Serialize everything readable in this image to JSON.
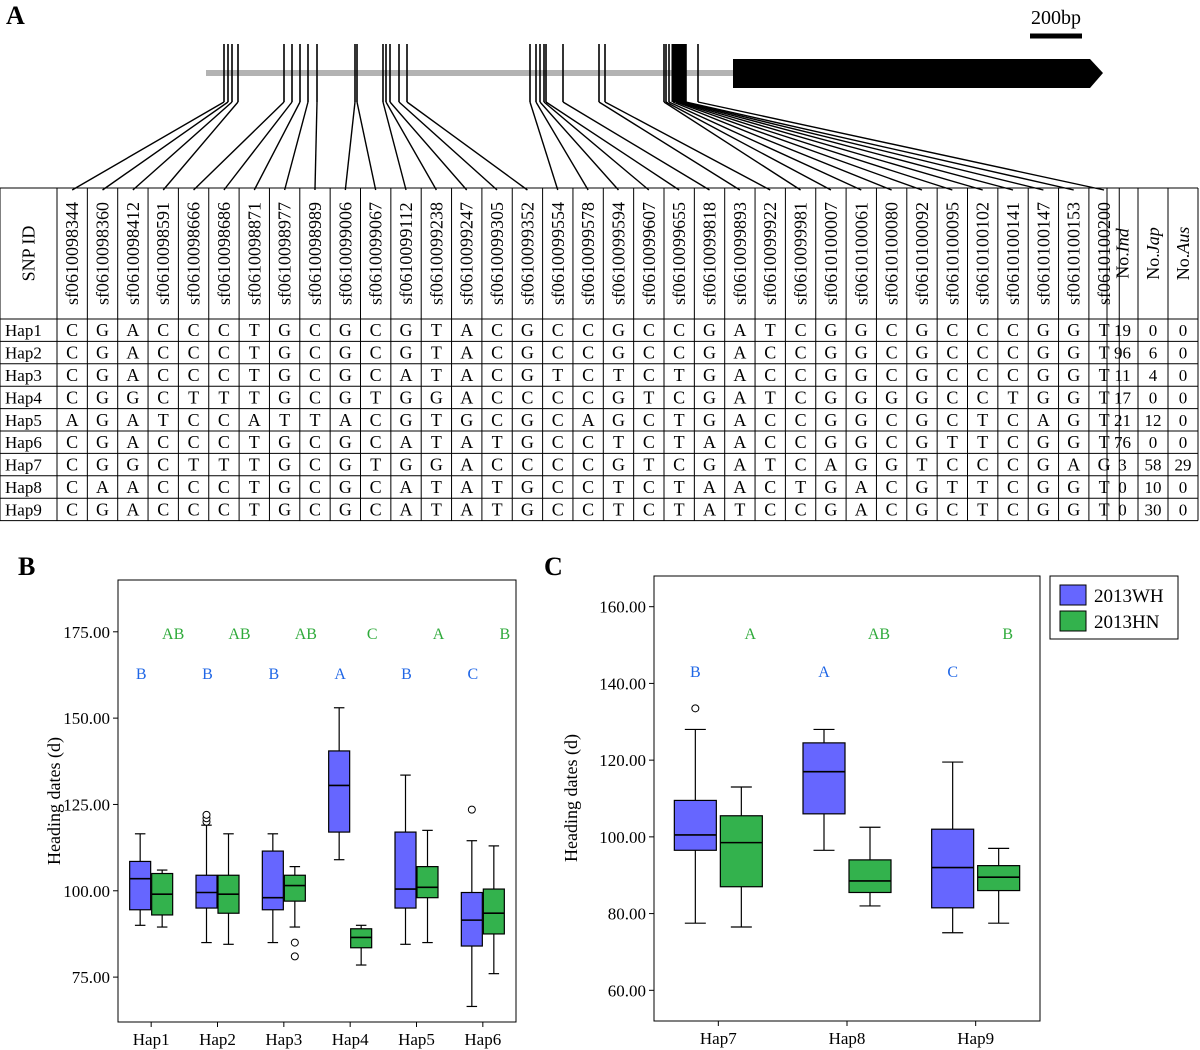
{
  "panel_labels": {
    "a": "A",
    "b": "B",
    "c": "C"
  },
  "gene_model": {
    "scale_bar_label": "200bp",
    "snp_count": 35
  },
  "snp_table": {
    "header_first": "SNP ID",
    "snp_ids": [
      "sf0610098344",
      "sf0610098360",
      "sf0610098412",
      "sf0610098591",
      "sf0610098666",
      "sf0610098686",
      "sf0610098871",
      "sf0610098977",
      "sf0610098989",
      "sf0610099006",
      "sf0610099067",
      "sf0610099112",
      "sf0610099238",
      "sf0610099247",
      "sf0610099305",
      "sf0610099352",
      "sf0610099554",
      "sf0610099578",
      "sf0610099594",
      "sf0610099607",
      "sf0610099655",
      "sf0610099818",
      "sf0610099893",
      "sf0610099922",
      "sf0610099981",
      "sf0610100007",
      "sf0610100061",
      "sf0610100080",
      "sf0610100092",
      "sf0610100095",
      "sf0610100102",
      "sf0610100141",
      "sf0610100147",
      "sf0610100153",
      "sf0610100200"
    ],
    "count_headers": [
      {
        "prefix": "No.",
        "italic": "Ind"
      },
      {
        "prefix": "No.",
        "italic": "Jap"
      },
      {
        "prefix": "No.",
        "italic": "Aus"
      }
    ],
    "rows": [
      {
        "hap": "Hap1",
        "alleles": "CGACCCTGCGCGTACGCCGCCGATCGGCGCCCGGT",
        "counts": [
          19,
          0,
          0
        ]
      },
      {
        "hap": "Hap2",
        "alleles": "CGACCCTGCGCGTACGCCGCCGACCGGCGCCCGGT",
        "counts": [
          96,
          6,
          0
        ]
      },
      {
        "hap": "Hap3",
        "alleles": "CGACCCTGCGCATACGTCTCTGACCGGCGCCCGGT",
        "counts": [
          11,
          4,
          0
        ]
      },
      {
        "hap": "Hap4",
        "alleles": "CGGCTTTGCGTGGACCCCGTCGATCGGGGCCTGGT",
        "counts": [
          17,
          0,
          0
        ]
      },
      {
        "hap": "Hap5",
        "alleles": "AGATCCATTACGTGCGCAGCTGACCGGCGCTCAGT",
        "counts": [
          21,
          12,
          0
        ]
      },
      {
        "hap": "Hap6",
        "alleles": "CGACCCTGCGCATATGCCTCTAACCGGCGTTCGGT",
        "counts": [
          76,
          0,
          0
        ]
      },
      {
        "hap": "Hap7",
        "alleles": "CGGCTTTGCGTGGACCCCGTCGATCAGGTCCCGAG",
        "counts": [
          3,
          58,
          29
        ]
      },
      {
        "hap": "Hap8",
        "alleles": "CAACCCTGCGCATATGCCTCTAACTGACGTTCGGT",
        "counts": [
          0,
          10,
          0
        ]
      },
      {
        "hap": "Hap9",
        "alleles": "CGACCCTGCGCATATGCCTCTATCCGACGCTCGGT",
        "counts": [
          0,
          30,
          0
        ]
      }
    ]
  },
  "colors": {
    "wh": "#6666ff",
    "hn": "#33b24d",
    "wh_letter": "#1f66e6",
    "hn_letter": "#2eaa3a"
  },
  "legend": {
    "wh": "2013WH",
    "hn": "2013HN"
  },
  "chart_data": [
    {
      "type": "boxplot",
      "panel": "B",
      "ylabel": "Heading dates (d)",
      "xlabel": "",
      "ylim": [
        62,
        190
      ],
      "yticks": [
        75,
        100,
        125,
        150,
        175
      ],
      "ytick_labels": [
        "75.00",
        "100.00",
        "125.00",
        "150.00",
        "175.00"
      ],
      "categories": [
        "Hap1",
        "Hap2",
        "Hap3",
        "Hap4",
        "Hap5",
        "Hap6"
      ],
      "series": [
        {
          "name": "2013WH",
          "boxes": [
            {
              "min": 90,
              "q1": 94.5,
              "median": 103.5,
              "q3": 108.5,
              "max": 116.5,
              "outliers": []
            },
            {
              "min": 85,
              "q1": 95,
              "median": 99.5,
              "q3": 104.5,
              "max": 119,
              "outliers": [
                120,
                121,
                122
              ]
            },
            {
              "min": 85,
              "q1": 94.5,
              "median": 98,
              "q3": 111.5,
              "max": 116.5,
              "outliers": []
            },
            {
              "min": 109,
              "q1": 117,
              "median": 130.5,
              "q3": 140.5,
              "max": 153,
              "outliers": []
            },
            {
              "min": 84.5,
              "q1": 95,
              "median": 100.5,
              "q3": 117,
              "max": 133.5,
              "outliers": []
            },
            {
              "min": 66.5,
              "q1": 84,
              "median": 91.5,
              "q3": 99.5,
              "max": 114.5,
              "outliers": [
                123.5
              ]
            }
          ]
        },
        {
          "name": "2013HN",
          "boxes": [
            {
              "min": 89.5,
              "q1": 93,
              "median": 99,
              "q3": 105,
              "max": 106,
              "outliers": []
            },
            {
              "min": 84.5,
              "q1": 93.5,
              "median": 99,
              "q3": 104.5,
              "max": 116.5,
              "outliers": []
            },
            {
              "min": 89.5,
              "q1": 97,
              "median": 101.5,
              "q3": 104.5,
              "max": 107,
              "outliers": [
                85,
                81
              ]
            },
            {
              "min": 78.5,
              "q1": 83.5,
              "median": 86.5,
              "q3": 89,
              "max": 90,
              "outliers": []
            },
            {
              "min": 85,
              "q1": 98,
              "median": 101,
              "q3": 107,
              "max": 117.5,
              "outliers": []
            },
            {
              "min": 76,
              "q1": 87.5,
              "median": 93.5,
              "q3": 100.5,
              "max": 113,
              "outliers": []
            }
          ]
        }
      ],
      "significance": {
        "2013WH": [
          "B",
          "B",
          "B",
          "A",
          "B",
          "C"
        ],
        "2013HN": [
          "AB",
          "AB",
          "AB",
          "C",
          "A",
          "B"
        ]
      }
    },
    {
      "type": "boxplot",
      "panel": "C",
      "ylabel": "Heading dates (d)",
      "xlabel": "",
      "ylim": [
        52,
        168
      ],
      "yticks": [
        60,
        80,
        100,
        120,
        140,
        160
      ],
      "ytick_labels": [
        "60.00",
        "80.00",
        "100.00",
        "120.00",
        "140.00",
        "160.00"
      ],
      "categories": [
        "Hap7",
        "Hap8",
        "Hap9"
      ],
      "legend_position": "top-right",
      "series": [
        {
          "name": "2013WH",
          "boxes": [
            {
              "min": 77.5,
              "q1": 96.5,
              "median": 100.5,
              "q3": 109.5,
              "max": 128,
              "outliers": [
                133.5
              ]
            },
            {
              "min": 96.5,
              "q1": 106,
              "median": 117,
              "q3": 124.5,
              "max": 128,
              "outliers": []
            },
            {
              "min": 75,
              "q1": 81.5,
              "median": 92,
              "q3": 102,
              "max": 119.5,
              "outliers": []
            }
          ]
        },
        {
          "name": "2013HN",
          "boxes": [
            {
              "min": 76.5,
              "q1": 87,
              "median": 98.5,
              "q3": 105.5,
              "max": 113,
              "outliers": []
            },
            {
              "min": 82,
              "q1": 85.5,
              "median": 88.5,
              "q3": 94,
              "max": 102.5,
              "outliers": []
            },
            {
              "min": 77.5,
              "q1": 86,
              "median": 89.5,
              "q3": 92.5,
              "max": 97,
              "outliers": []
            }
          ]
        }
      ],
      "significance": {
        "2013WH": [
          "B",
          "A",
          "C"
        ],
        "2013HN": [
          "A",
          "AB",
          "B"
        ]
      }
    }
  ]
}
